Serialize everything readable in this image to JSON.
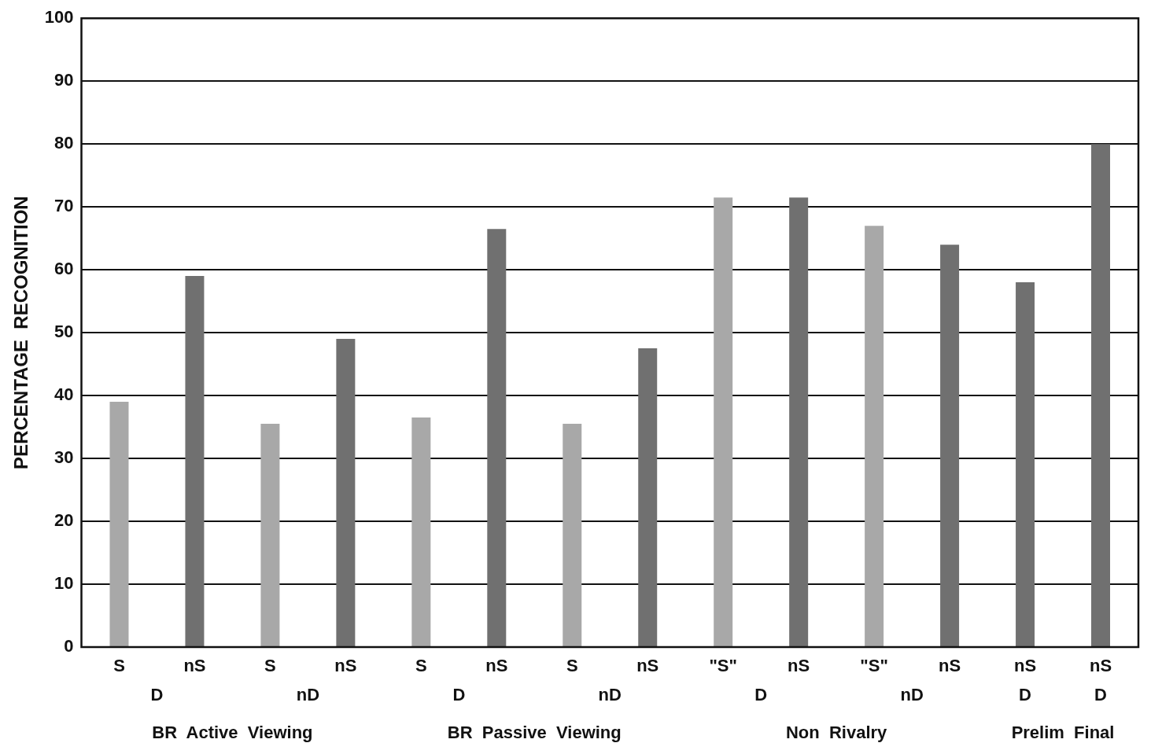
{
  "chart_data": {
    "type": "bar",
    "ylabel": "PERCENTAGE  RECOGNITION",
    "categories": [
      "S",
      "nS",
      "S",
      "nS",
      "S",
      "nS",
      "S",
      "nS",
      "\"S\"",
      "nS",
      "\"S\"",
      "nS",
      "nS",
      "nS"
    ],
    "values": [
      39,
      59,
      35.5,
      49,
      36.5,
      66.5,
      35.5,
      47.5,
      71.5,
      71.5,
      67,
      64,
      58,
      80
    ],
    "colors": [
      "#a8a8a8",
      "#707070",
      "#a8a8a8",
      "#707070",
      "#a8a8a8",
      "#707070",
      "#a8a8a8",
      "#707070",
      "#a8a8a8",
      "#707070",
      "#a8a8a8",
      "#707070",
      "#707070",
      "#707070"
    ],
    "ylim": [
      0,
      100
    ],
    "yticks": [
      0,
      10,
      20,
      30,
      40,
      50,
      60,
      70,
      80,
      90,
      100
    ],
    "grid": "y",
    "annotations": [
      "D",
      "nD",
      "D",
      "nD",
      "D",
      "nD",
      "D",
      "D",
      "BR  Active  Viewing",
      "BR  Passive  Viewing",
      "Non  Rivalry",
      "Prelim  Final"
    ]
  }
}
